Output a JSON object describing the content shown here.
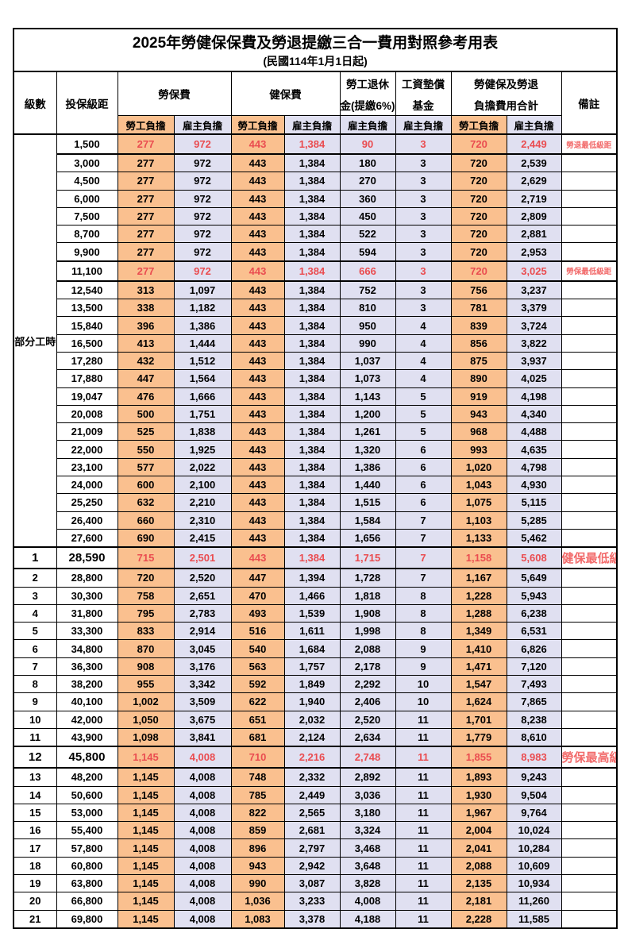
{
  "title": "2025年勞健保保費及勞退提繳三合一費用對照參考用表",
  "subtitle": "(民國114年1月1日起)",
  "header": {
    "level": "級數",
    "salary": "投保級距",
    "labor": "勞保費",
    "health": "健保費",
    "pension_line1": "勞工退休",
    "pension_line2": "金(提繳6%)",
    "fund_line1": "工資墊償",
    "fund_line2": "基金",
    "total_line1": "勞健保及勞退",
    "total_line2": "負擔費用合計",
    "note": "備註",
    "employee_share": "勞工負擔",
    "employer_share": "雇主負擔"
  },
  "part_time_label": "部分工時",
  "colors": {
    "employee_bg": "#FAC08F",
    "employer_bg": "#E0E0F1",
    "highlight_red": "#EA4C50",
    "note_red": "#F26B6B"
  },
  "notes": {
    "pension_min": "勞退最低級距",
    "labor_min": "勞保最低級距",
    "health_min": "健保最低級距",
    "labor_max": "勞保最高級距"
  },
  "rows": [
    {
      "level": "",
      "salary": "1,500",
      "labor_emp": "277",
      "labor_er": "972",
      "health_emp": "443",
      "health_er": "1,384",
      "pension_er": "90",
      "fund_er": "3",
      "total_emp": "720",
      "total_er": "2,449",
      "note": "勞退最低級距",
      "highlight": true,
      "big": false
    },
    {
      "level": "",
      "salary": "3,000",
      "labor_emp": "277",
      "labor_er": "972",
      "health_emp": "443",
      "health_er": "1,384",
      "pension_er": "180",
      "fund_er": "3",
      "total_emp": "720",
      "total_er": "2,539",
      "note": "",
      "highlight": false,
      "big": false
    },
    {
      "level": "",
      "salary": "4,500",
      "labor_emp": "277",
      "labor_er": "972",
      "health_emp": "443",
      "health_er": "1,384",
      "pension_er": "270",
      "fund_er": "3",
      "total_emp": "720",
      "total_er": "2,629",
      "note": "",
      "highlight": false,
      "big": false
    },
    {
      "level": "",
      "salary": "6,000",
      "labor_emp": "277",
      "labor_er": "972",
      "health_emp": "443",
      "health_er": "1,384",
      "pension_er": "360",
      "fund_er": "3",
      "total_emp": "720",
      "total_er": "2,719",
      "note": "",
      "highlight": false,
      "big": false
    },
    {
      "level": "",
      "salary": "7,500",
      "labor_emp": "277",
      "labor_er": "972",
      "health_emp": "443",
      "health_er": "1,384",
      "pension_er": "450",
      "fund_er": "3",
      "total_emp": "720",
      "total_er": "2,809",
      "note": "",
      "highlight": false,
      "big": false
    },
    {
      "level": "",
      "salary": "8,700",
      "labor_emp": "277",
      "labor_er": "972",
      "health_emp": "443",
      "health_er": "1,384",
      "pension_er": "522",
      "fund_er": "3",
      "total_emp": "720",
      "total_er": "2,881",
      "note": "",
      "highlight": false,
      "big": false
    },
    {
      "level": "",
      "salary": "9,900",
      "labor_emp": "277",
      "labor_er": "972",
      "health_emp": "443",
      "health_er": "1,384",
      "pension_er": "594",
      "fund_er": "3",
      "total_emp": "720",
      "total_er": "2,953",
      "note": "",
      "highlight": false,
      "big": false
    },
    {
      "level": "",
      "salary": "11,100",
      "labor_emp": "277",
      "labor_er": "972",
      "health_emp": "443",
      "health_er": "1,384",
      "pension_er": "666",
      "fund_er": "3",
      "total_emp": "720",
      "total_er": "3,025",
      "note": "勞保最低級距",
      "highlight": true,
      "big": false
    },
    {
      "level": "",
      "salary": "12,540",
      "labor_emp": "313",
      "labor_er": "1,097",
      "health_emp": "443",
      "health_er": "1,384",
      "pension_er": "752",
      "fund_er": "3",
      "total_emp": "756",
      "total_er": "3,237",
      "note": "",
      "highlight": false,
      "big": false
    },
    {
      "level": "",
      "salary": "13,500",
      "labor_emp": "338",
      "labor_er": "1,182",
      "health_emp": "443",
      "health_er": "1,384",
      "pension_er": "810",
      "fund_er": "3",
      "total_emp": "781",
      "total_er": "3,379",
      "note": "",
      "highlight": false,
      "big": false
    },
    {
      "level": "",
      "salary": "15,840",
      "labor_emp": "396",
      "labor_er": "1,386",
      "health_emp": "443",
      "health_er": "1,384",
      "pension_er": "950",
      "fund_er": "4",
      "total_emp": "839",
      "total_er": "3,724",
      "note": "",
      "highlight": false,
      "big": false
    },
    {
      "level": "",
      "salary": "16,500",
      "labor_emp": "413",
      "labor_er": "1,444",
      "health_emp": "443",
      "health_er": "1,384",
      "pension_er": "990",
      "fund_er": "4",
      "total_emp": "856",
      "total_er": "3,822",
      "note": "",
      "highlight": false,
      "big": false
    },
    {
      "level": "",
      "salary": "17,280",
      "labor_emp": "432",
      "labor_er": "1,512",
      "health_emp": "443",
      "health_er": "1,384",
      "pension_er": "1,037",
      "fund_er": "4",
      "total_emp": "875",
      "total_er": "3,937",
      "note": "",
      "highlight": false,
      "big": false
    },
    {
      "level": "",
      "salary": "17,880",
      "labor_emp": "447",
      "labor_er": "1,564",
      "health_emp": "443",
      "health_er": "1,384",
      "pension_er": "1,073",
      "fund_er": "4",
      "total_emp": "890",
      "total_er": "4,025",
      "note": "",
      "highlight": false,
      "big": false
    },
    {
      "level": "",
      "salary": "19,047",
      "labor_emp": "476",
      "labor_er": "1,666",
      "health_emp": "443",
      "health_er": "1,384",
      "pension_er": "1,143",
      "fund_er": "5",
      "total_emp": "919",
      "total_er": "4,198",
      "note": "",
      "highlight": false,
      "big": false
    },
    {
      "level": "",
      "salary": "20,008",
      "labor_emp": "500",
      "labor_er": "1,751",
      "health_emp": "443",
      "health_er": "1,384",
      "pension_er": "1,200",
      "fund_er": "5",
      "total_emp": "943",
      "total_er": "4,340",
      "note": "",
      "highlight": false,
      "big": false
    },
    {
      "level": "",
      "salary": "21,009",
      "labor_emp": "525",
      "labor_er": "1,838",
      "health_emp": "443",
      "health_er": "1,384",
      "pension_er": "1,261",
      "fund_er": "5",
      "total_emp": "968",
      "total_er": "4,488",
      "note": "",
      "highlight": false,
      "big": false
    },
    {
      "level": "",
      "salary": "22,000",
      "labor_emp": "550",
      "labor_er": "1,925",
      "health_emp": "443",
      "health_er": "1,384",
      "pension_er": "1,320",
      "fund_er": "6",
      "total_emp": "993",
      "total_er": "4,635",
      "note": "",
      "highlight": false,
      "big": false
    },
    {
      "level": "",
      "salary": "23,100",
      "labor_emp": "577",
      "labor_er": "2,022",
      "health_emp": "443",
      "health_er": "1,384",
      "pension_er": "1,386",
      "fund_er": "6",
      "total_emp": "1,020",
      "total_er": "4,798",
      "note": "",
      "highlight": false,
      "big": false
    },
    {
      "level": "",
      "salary": "24,000",
      "labor_emp": "600",
      "labor_er": "2,100",
      "health_emp": "443",
      "health_er": "1,384",
      "pension_er": "1,440",
      "fund_er": "6",
      "total_emp": "1,043",
      "total_er": "4,930",
      "note": "",
      "highlight": false,
      "big": false
    },
    {
      "level": "",
      "salary": "25,250",
      "labor_emp": "632",
      "labor_er": "2,210",
      "health_emp": "443",
      "health_er": "1,384",
      "pension_er": "1,515",
      "fund_er": "6",
      "total_emp": "1,075",
      "total_er": "5,115",
      "note": "",
      "highlight": false,
      "big": false
    },
    {
      "level": "",
      "salary": "26,400",
      "labor_emp": "660",
      "labor_er": "2,310",
      "health_emp": "443",
      "health_er": "1,384",
      "pension_er": "1,584",
      "fund_er": "7",
      "total_emp": "1,103",
      "total_er": "5,285",
      "note": "",
      "highlight": false,
      "big": false
    },
    {
      "level": "",
      "salary": "27,600",
      "labor_emp": "690",
      "labor_er": "2,415",
      "health_emp": "443",
      "health_er": "1,384",
      "pension_er": "1,656",
      "fund_er": "7",
      "total_emp": "1,133",
      "total_er": "5,462",
      "note": "",
      "highlight": false,
      "big": false
    },
    {
      "level": "1",
      "salary": "28,590",
      "labor_emp": "715",
      "labor_er": "2,501",
      "health_emp": "443",
      "health_er": "1,384",
      "pension_er": "1,715",
      "fund_er": "7",
      "total_emp": "1,158",
      "total_er": "5,608",
      "note": "健保最低級距",
      "highlight": true,
      "big": true
    },
    {
      "level": "2",
      "salary": "28,800",
      "labor_emp": "720",
      "labor_er": "2,520",
      "health_emp": "447",
      "health_er": "1,394",
      "pension_er": "1,728",
      "fund_er": "7",
      "total_emp": "1,167",
      "total_er": "5,649",
      "note": "",
      "highlight": false,
      "big": false
    },
    {
      "level": "3",
      "salary": "30,300",
      "labor_emp": "758",
      "labor_er": "2,651",
      "health_emp": "470",
      "health_er": "1,466",
      "pension_er": "1,818",
      "fund_er": "8",
      "total_emp": "1,228",
      "total_er": "5,943",
      "note": "",
      "highlight": false,
      "big": false
    },
    {
      "level": "4",
      "salary": "31,800",
      "labor_emp": "795",
      "labor_er": "2,783",
      "health_emp": "493",
      "health_er": "1,539",
      "pension_er": "1,908",
      "fund_er": "8",
      "total_emp": "1,288",
      "total_er": "6,238",
      "note": "",
      "highlight": false,
      "big": false
    },
    {
      "level": "5",
      "salary": "33,300",
      "labor_emp": "833",
      "labor_er": "2,914",
      "health_emp": "516",
      "health_er": "1,611",
      "pension_er": "1,998",
      "fund_er": "8",
      "total_emp": "1,349",
      "total_er": "6,531",
      "note": "",
      "highlight": false,
      "big": false
    },
    {
      "level": "6",
      "salary": "34,800",
      "labor_emp": "870",
      "labor_er": "3,045",
      "health_emp": "540",
      "health_er": "1,684",
      "pension_er": "2,088",
      "fund_er": "9",
      "total_emp": "1,410",
      "total_er": "6,826",
      "note": "",
      "highlight": false,
      "big": false
    },
    {
      "level": "7",
      "salary": "36,300",
      "labor_emp": "908",
      "labor_er": "3,176",
      "health_emp": "563",
      "health_er": "1,757",
      "pension_er": "2,178",
      "fund_er": "9",
      "total_emp": "1,471",
      "total_er": "7,120",
      "note": "",
      "highlight": false,
      "big": false
    },
    {
      "level": "8",
      "salary": "38,200",
      "labor_emp": "955",
      "labor_er": "3,342",
      "health_emp": "592",
      "health_er": "1,849",
      "pension_er": "2,292",
      "fund_er": "10",
      "total_emp": "1,547",
      "total_er": "7,493",
      "note": "",
      "highlight": false,
      "big": false
    },
    {
      "level": "9",
      "salary": "40,100",
      "labor_emp": "1,002",
      "labor_er": "3,509",
      "health_emp": "622",
      "health_er": "1,940",
      "pension_er": "2,406",
      "fund_er": "10",
      "total_emp": "1,624",
      "total_er": "7,865",
      "note": "",
      "highlight": false,
      "big": false
    },
    {
      "level": "10",
      "salary": "42,000",
      "labor_emp": "1,050",
      "labor_er": "3,675",
      "health_emp": "651",
      "health_er": "2,032",
      "pension_er": "2,520",
      "fund_er": "11",
      "total_emp": "1,701",
      "total_er": "8,238",
      "note": "",
      "highlight": false,
      "big": false
    },
    {
      "level": "11",
      "salary": "43,900",
      "labor_emp": "1,098",
      "labor_er": "3,841",
      "health_emp": "681",
      "health_er": "2,124",
      "pension_er": "2,634",
      "fund_er": "11",
      "total_emp": "1,779",
      "total_er": "8,610",
      "note": "",
      "highlight": false,
      "big": false
    },
    {
      "level": "12",
      "salary": "45,800",
      "labor_emp": "1,145",
      "labor_er": "4,008",
      "health_emp": "710",
      "health_er": "2,216",
      "pension_er": "2,748",
      "fund_er": "11",
      "total_emp": "1,855",
      "total_er": "8,983",
      "note": "勞保最高級距",
      "highlight": true,
      "big": true
    },
    {
      "level": "13",
      "salary": "48,200",
      "labor_emp": "1,145",
      "labor_er": "4,008",
      "health_emp": "748",
      "health_er": "2,332",
      "pension_er": "2,892",
      "fund_er": "11",
      "total_emp": "1,893",
      "total_er": "9,243",
      "note": "",
      "highlight": false,
      "big": false
    },
    {
      "level": "14",
      "salary": "50,600",
      "labor_emp": "1,145",
      "labor_er": "4,008",
      "health_emp": "785",
      "health_er": "2,449",
      "pension_er": "3,036",
      "fund_er": "11",
      "total_emp": "1,930",
      "total_er": "9,504",
      "note": "",
      "highlight": false,
      "big": false
    },
    {
      "level": "15",
      "salary": "53,000",
      "labor_emp": "1,145",
      "labor_er": "4,008",
      "health_emp": "822",
      "health_er": "2,565",
      "pension_er": "3,180",
      "fund_er": "11",
      "total_emp": "1,967",
      "total_er": "9,764",
      "note": "",
      "highlight": false,
      "big": false
    },
    {
      "level": "16",
      "salary": "55,400",
      "labor_emp": "1,145",
      "labor_er": "4,008",
      "health_emp": "859",
      "health_er": "2,681",
      "pension_er": "3,324",
      "fund_er": "11",
      "total_emp": "2,004",
      "total_er": "10,024",
      "note": "",
      "highlight": false,
      "big": false
    },
    {
      "level": "17",
      "salary": "57,800",
      "labor_emp": "1,145",
      "labor_er": "4,008",
      "health_emp": "896",
      "health_er": "2,797",
      "pension_er": "3,468",
      "fund_er": "11",
      "total_emp": "2,041",
      "total_er": "10,284",
      "note": "",
      "highlight": false,
      "big": false
    },
    {
      "level": "18",
      "salary": "60,800",
      "labor_emp": "1,145",
      "labor_er": "4,008",
      "health_emp": "943",
      "health_er": "2,942",
      "pension_er": "3,648",
      "fund_er": "11",
      "total_emp": "2,088",
      "total_er": "10,609",
      "note": "",
      "highlight": false,
      "big": false
    },
    {
      "level": "19",
      "salary": "63,800",
      "labor_emp": "1,145",
      "labor_er": "4,008",
      "health_emp": "990",
      "health_er": "3,087",
      "pension_er": "3,828",
      "fund_er": "11",
      "total_emp": "2,135",
      "total_er": "10,934",
      "note": "",
      "highlight": false,
      "big": false
    },
    {
      "level": "20",
      "salary": "66,800",
      "labor_emp": "1,145",
      "labor_er": "4,008",
      "health_emp": "1,036",
      "health_er": "3,233",
      "pension_er": "4,008",
      "fund_er": "11",
      "total_emp": "2,181",
      "total_er": "11,260",
      "note": "",
      "highlight": false,
      "big": false
    },
    {
      "level": "21",
      "salary": "69,800",
      "labor_emp": "1,145",
      "labor_er": "4,008",
      "health_emp": "1,083",
      "health_er": "3,378",
      "pension_er": "4,188",
      "fund_er": "11",
      "total_emp": "2,228",
      "total_er": "11,585",
      "note": "",
      "highlight": false,
      "big": false
    }
  ]
}
